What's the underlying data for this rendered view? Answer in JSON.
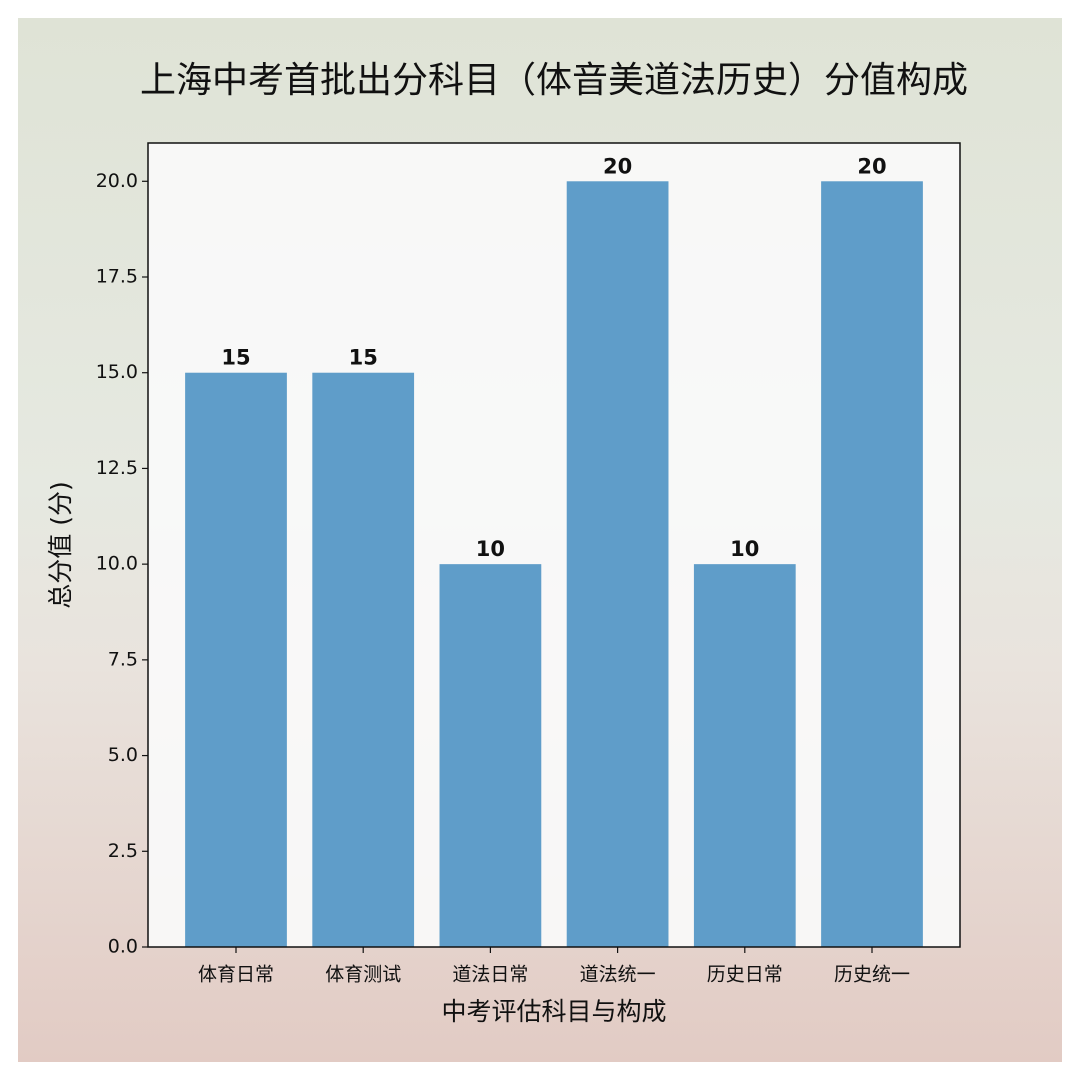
{
  "chart_data": {
    "type": "bar",
    "title": "上海中考首批出分科目（体音美道法历史）分值构成",
    "x_label": "中考评估科目与构成",
    "y_label": "总分值 (分)",
    "categories": [
      "体育日常",
      "体育测试",
      "道法日常",
      "道法统一",
      "历史日常",
      "历史统一"
    ],
    "values": [
      15,
      15,
      10,
      20,
      10,
      20
    ],
    "color": "#5f9dc9",
    "ylim": [
      0,
      21
    ],
    "yticks": [
      {
        "value": 0,
        "label": "0.0"
      },
      2.5,
      {
        "value": 5,
        "label": "5.0"
      },
      7.5,
      {
        "value": 10,
        "label": "10.0"
      },
      12.5,
      {
        "value": 15,
        "label": "15.0"
      },
      17.5,
      {
        "value": 20,
        "label": "20.0"
      }
    ],
    "grid": false
  }
}
